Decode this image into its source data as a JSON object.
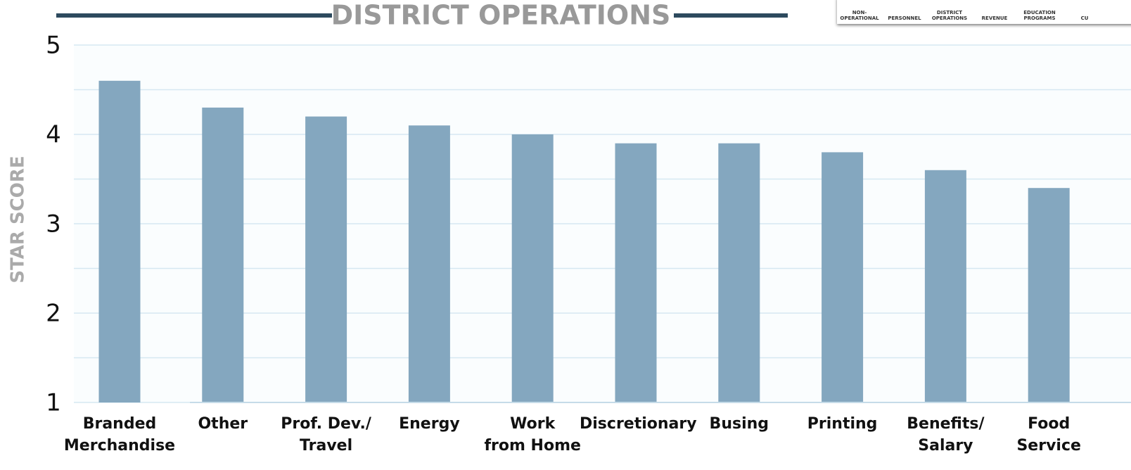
{
  "nav": {
    "items": [
      "NON-\nOPERATIONAL",
      "PERSONNEL",
      "DISTRICT\nOPERATIONS",
      "REVENUE",
      "EDUCATION\nPROGRAMS",
      "CU"
    ]
  },
  "chart_data": {
    "type": "bar",
    "title": "DISTRICT OPERATIONS",
    "y_label": "STAR SCORE",
    "categories": [
      "Branded\nMerchandise",
      "Other",
      "Prof. Dev./\nTravel",
      "Energy",
      "Work\nfrom Home",
      "Discretionary",
      "Busing",
      "Printing",
      "Benefits/\nSalary",
      "Food\nService"
    ],
    "values": [
      4.6,
      4.3,
      4.2,
      4.1,
      4.0,
      3.9,
      3.9,
      3.8,
      3.6,
      3.4
    ],
    "color": "#84a7bf",
    "ylim": [
      1,
      5
    ],
    "yticks": [
      1,
      2,
      3,
      4,
      5
    ],
    "grid": true,
    "minor_grid": true
  }
}
